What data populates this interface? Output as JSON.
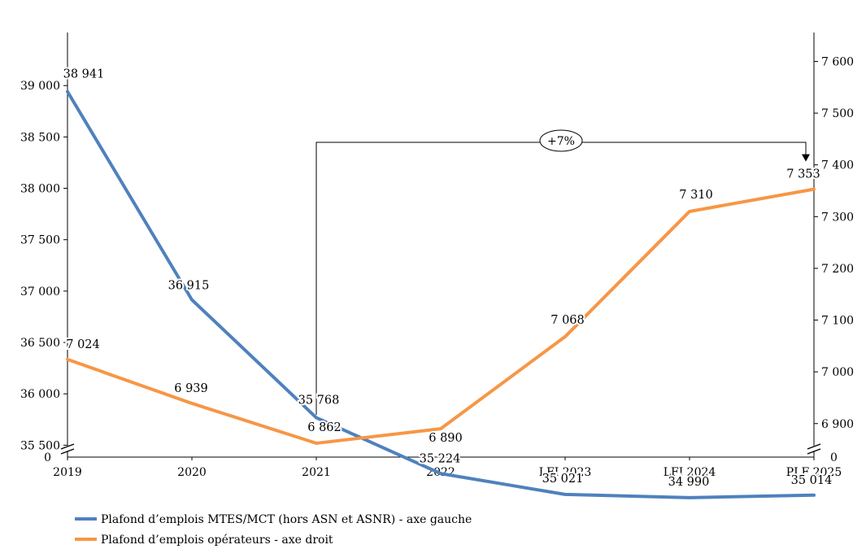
{
  "chart_data": {
    "type": "line",
    "categories": [
      "2019",
      "2020",
      "2021",
      "2022",
      "LFI 2023",
      "LFI 2024",
      "PLF 2025"
    ],
    "series": [
      {
        "name": "Plafond d’emplois MTES/MCT (hors ASN et ASNR) - axe gauche",
        "axis": "left",
        "color": "#4f81bd",
        "values": [
          38941,
          36915,
          35768,
          35224,
          35021,
          34990,
          35014
        ],
        "labels": [
          "38 941",
          "36 915",
          "35 768",
          "35 224",
          "35 021",
          "34 990",
          "35 014"
        ]
      },
      {
        "name": "Plafond d’emplois opérateurs - axe droit",
        "axis": "right",
        "color": "#f79646",
        "values": [
          7024,
          6939,
          6862,
          6890,
          7068,
          7310,
          7353
        ],
        "labels": [
          "7 024",
          "6 939",
          "6 862",
          "6 890",
          "7 068",
          "7 310",
          "7 353"
        ]
      }
    ],
    "y_left": {
      "ticks": [
        35500,
        36000,
        36500,
        37000,
        37500,
        38000,
        38500,
        39000
      ],
      "tick_labels": [
        "35 500",
        "36 000",
        "36 500",
        "37 000",
        "37 500",
        "38 000",
        "38 500",
        "39 000"
      ],
      "zero_label": "0",
      "broken_axis": true
    },
    "y_right": {
      "ticks": [
        6900,
        7000,
        7100,
        7200,
        7300,
        7400,
        7500,
        7600
      ],
      "tick_labels": [
        "6 900",
        "7 000",
        "7 100",
        "7 200",
        "7 300",
        "7 400",
        "7 500",
        "7 600"
      ],
      "zero_label": "0",
      "broken_axis": true
    },
    "annotation": {
      "label": "+7%",
      "from_category": "2021",
      "to_category": "PLF 2025",
      "series": "right"
    },
    "legend": {
      "position": "bottom-left"
    },
    "grid": false
  }
}
